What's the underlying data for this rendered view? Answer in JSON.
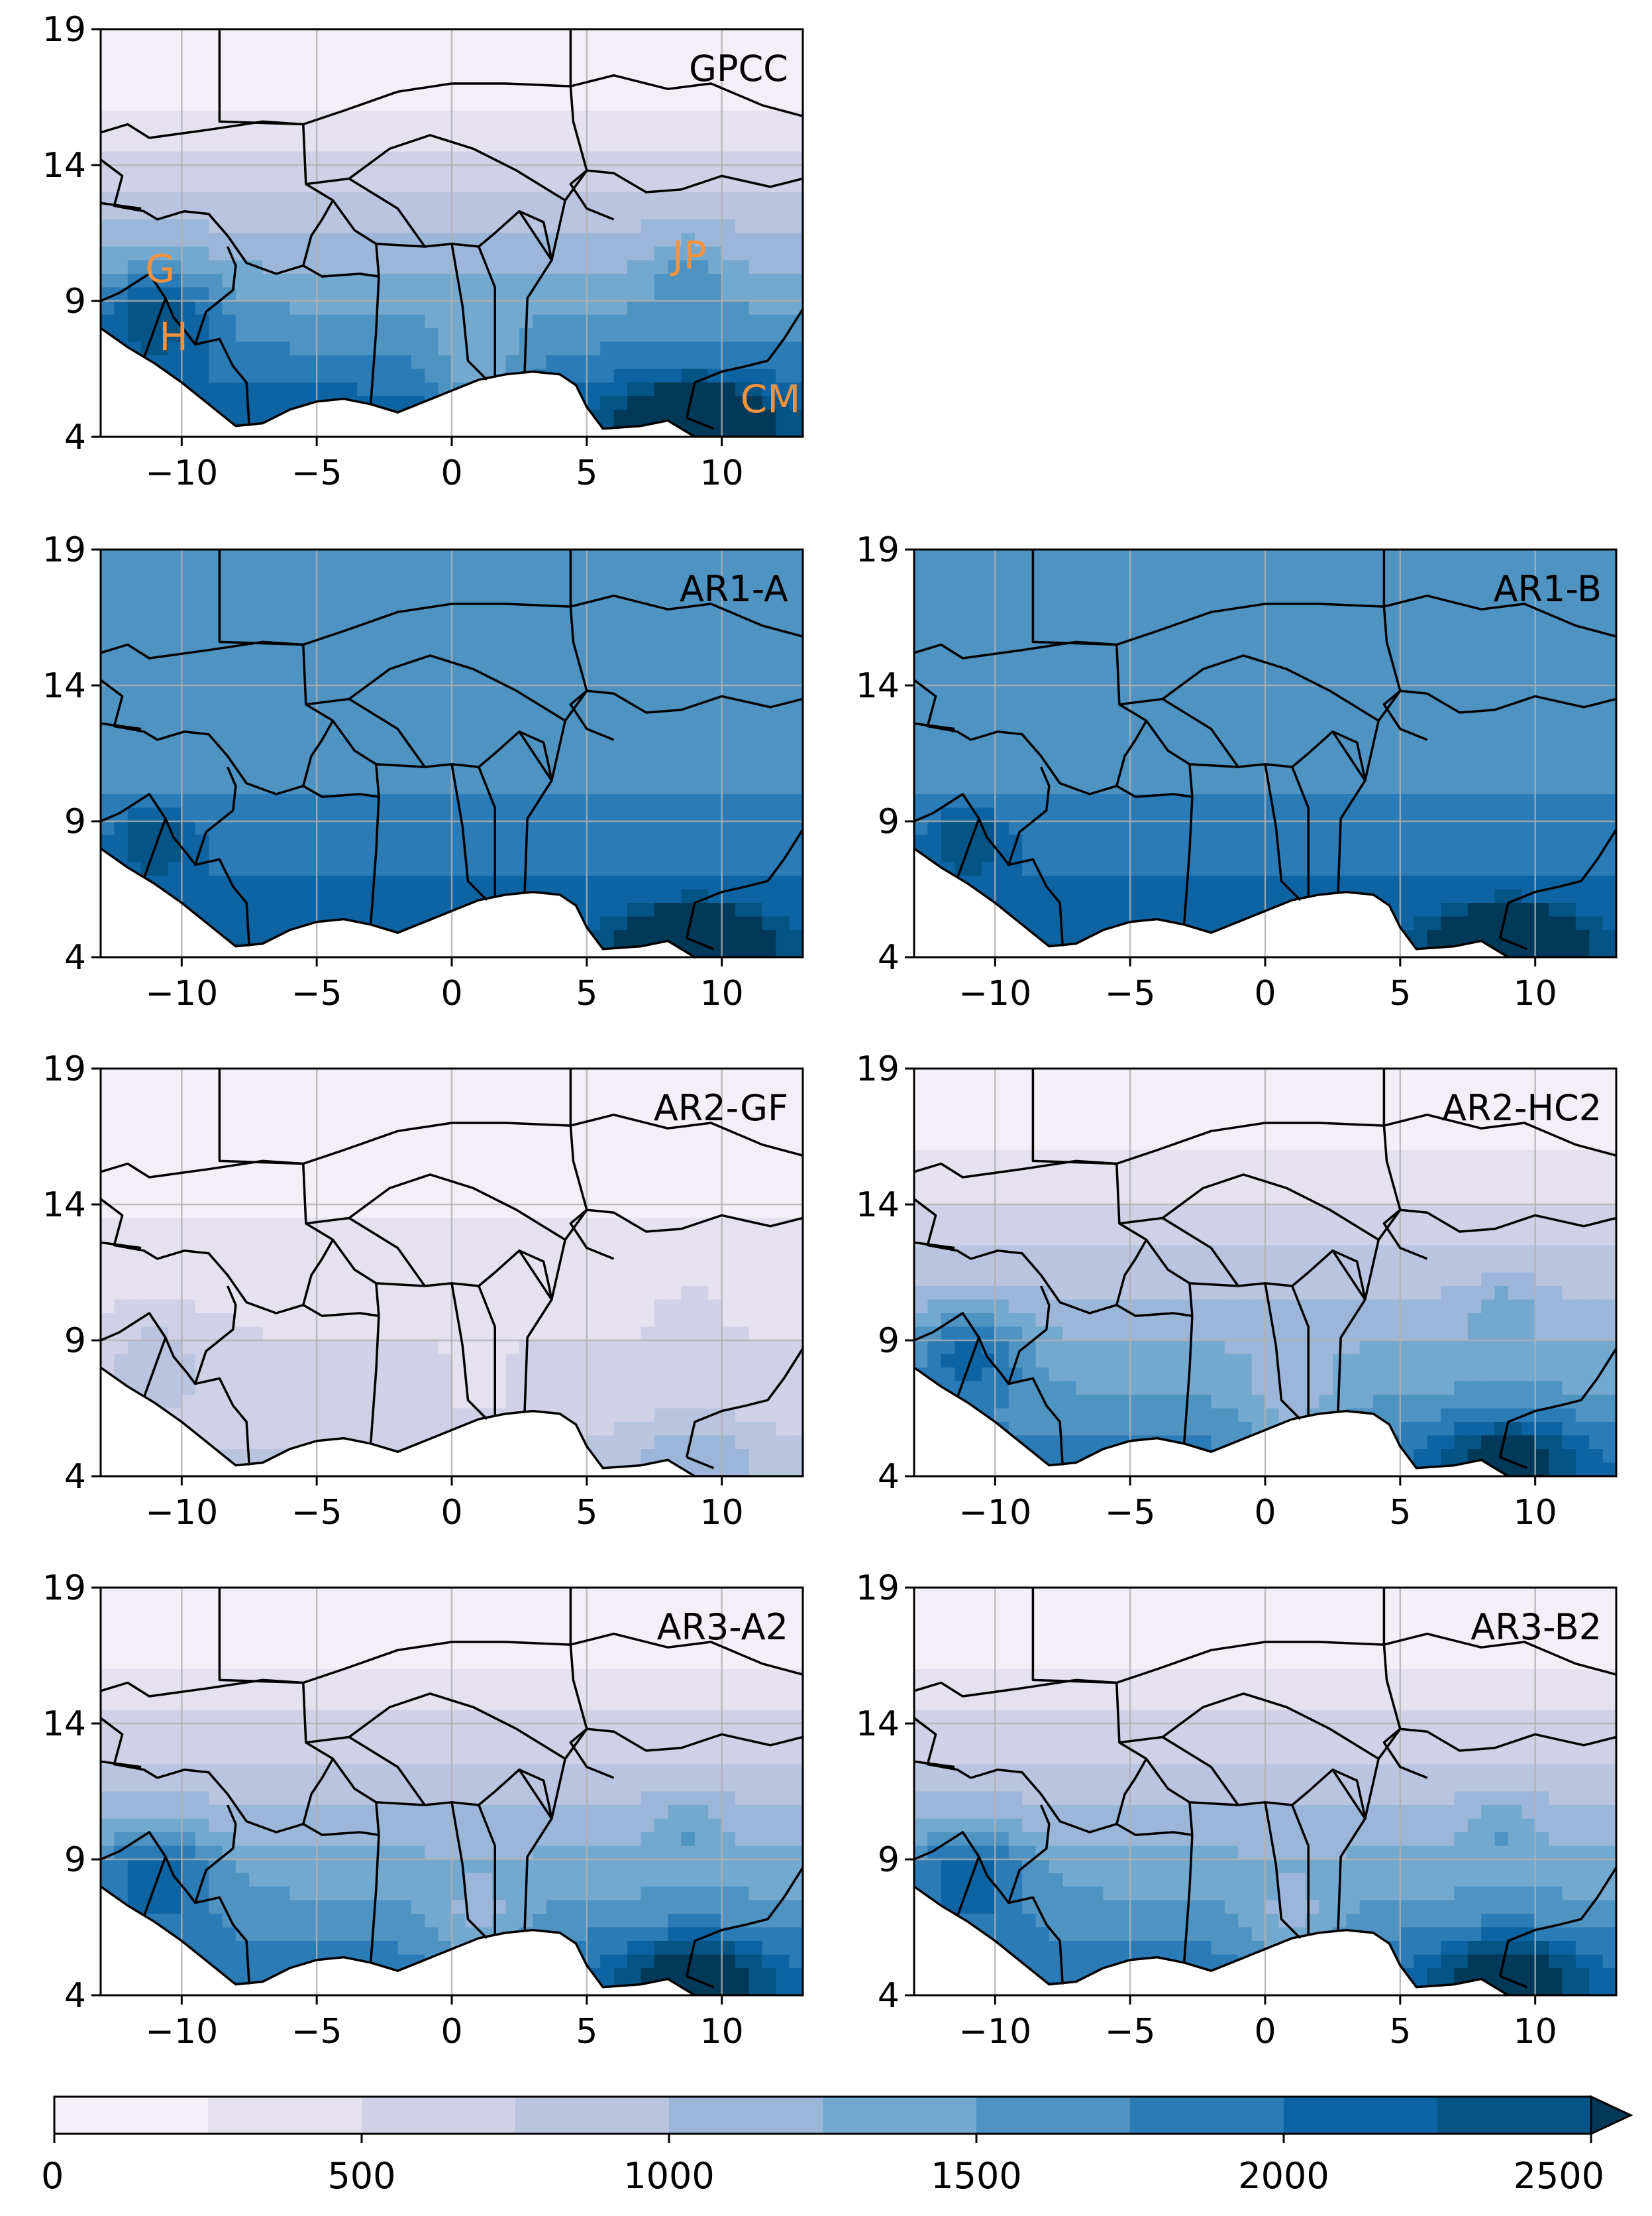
{
  "figure": {
    "x_ticks": [
      -10,
      -5,
      0,
      5,
      10
    ],
    "y_ticks": [
      19,
      14,
      9,
      4
    ],
    "x_range": [
      -13,
      13
    ],
    "y_range": [
      4,
      19
    ],
    "panels": [
      {
        "title": "GPCC",
        "labels": [
          {
            "text": "G",
            "lon": -10.8,
            "lat": 9.7
          },
          {
            "text": "H",
            "lon": -10.3,
            "lat": 7.2
          },
          {
            "text": "JP",
            "lon": 8.8,
            "lat": 10.2
          },
          {
            "text": "CM",
            "lon": 11.8,
            "lat": 4.9
          }
        ],
        "wet": 1.0,
        "north": 0.0
      },
      {
        "title": "AR1-A",
        "wet": 1.0,
        "north": 1.0
      },
      {
        "title": "AR1-B",
        "wet": 1.0,
        "north": 1.0
      },
      {
        "title": "AR2-GF",
        "wet": 0.35,
        "north": 0.0
      },
      {
        "title": "AR2-HC2",
        "wet": 0.85,
        "north": 0.0
      },
      {
        "title": "AR3-A2",
        "wet": 0.9,
        "north": 0.0
      },
      {
        "title": "AR3-B2",
        "wet": 0.9,
        "north": 0.0
      }
    ]
  },
  "colorbar": {
    "ticks": [
      0,
      500,
      1000,
      1500,
      2000,
      2500
    ],
    "levels": [
      0,
      250,
      500,
      750,
      1000,
      1250,
      1500,
      1750,
      2000,
      2250,
      2500
    ],
    "extend": "max",
    "colors": [
      "#f4eff7",
      "#e5e1ef",
      "#d0d1e6",
      "#b9c4df",
      "#9cb6d9",
      "#74a9cf",
      "#4f93c2",
      "#2b7bb6",
      "#0e64a3",
      "#045585",
      "#023858"
    ]
  },
  "colors": {
    "label": "#f5923e",
    "border": "#000000",
    "grid": "#b0b0b0"
  }
}
